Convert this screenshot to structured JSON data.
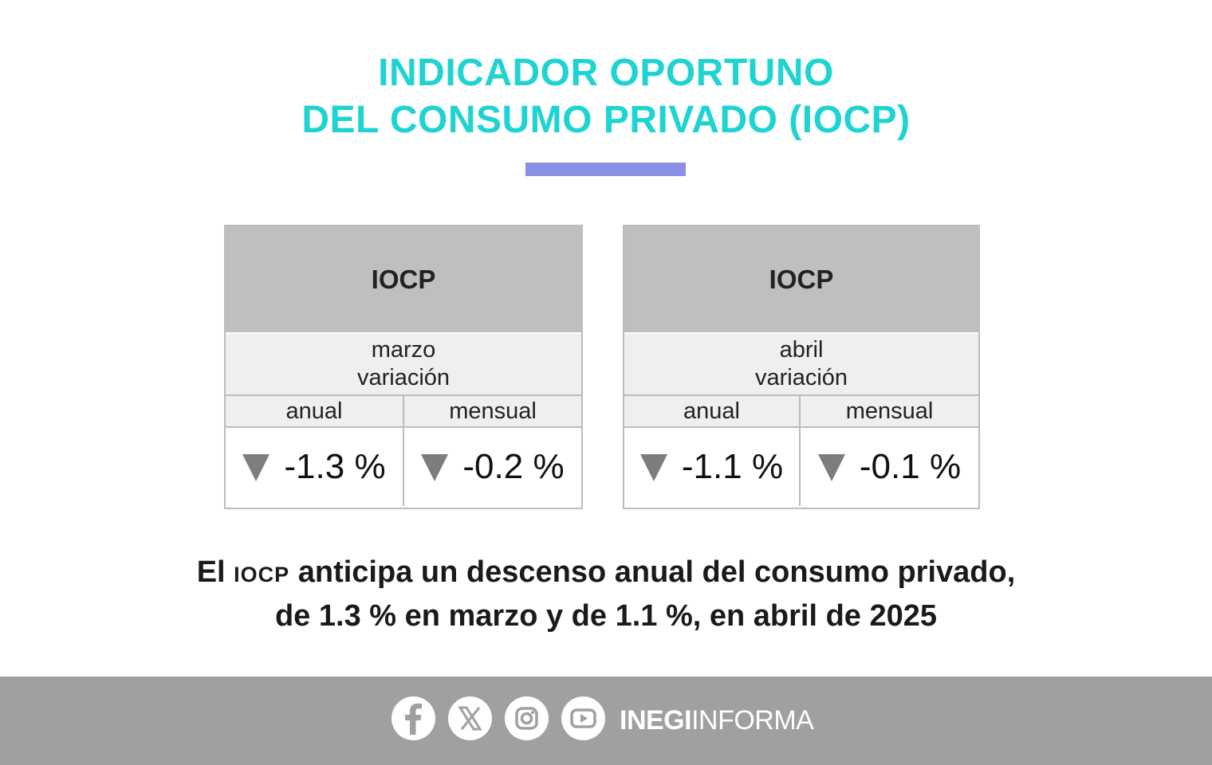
{
  "title": {
    "line1": "INDICADOR OPORTUNO",
    "line2": "DEL CONSUMO PRIVADO (IOCP)"
  },
  "cards": [
    {
      "header": "IOCP",
      "month": "marzo",
      "variation": "variación",
      "col_annual": "anual",
      "col_monthly": "mensual",
      "annual_value": "-1.3 %",
      "monthly_value": "-0.2 %"
    },
    {
      "header": "IOCP",
      "month": "abril",
      "variation": "variación",
      "col_annual": "anual",
      "col_monthly": "mensual",
      "annual_value": "-1.1 %",
      "monthly_value": "-0.1 %"
    }
  ],
  "summary": {
    "prefix": "El ",
    "acronym": "IOCP",
    "line1_rest": " anticipa un descenso anual del consumo privado,",
    "line2": "de 1.3 % en marzo y de 1.1 %, en abril de 2025"
  },
  "footer": {
    "icons": [
      "facebook-icon",
      "x-icon",
      "instagram-icon",
      "youtube-icon"
    ],
    "brand_bold": "INEGI",
    "brand_light": "INFORMA"
  },
  "colors": {
    "title": "#1fd3d3",
    "divider": "#8c8fe6",
    "footer": "#a0a0a0",
    "down_arrow": "#7d7d7d"
  }
}
